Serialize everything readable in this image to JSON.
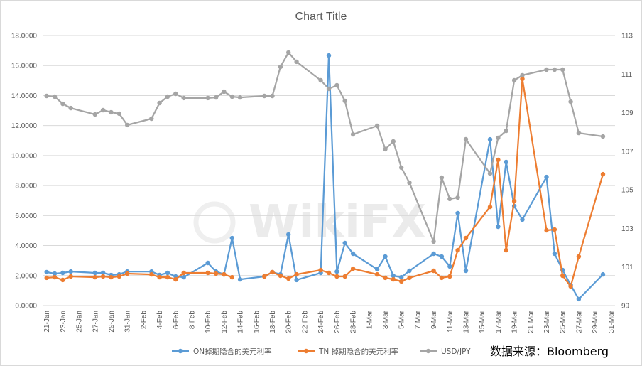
{
  "watermark": "WikiFX",
  "source_note": "数据来源：Bloomberg",
  "chart_data": {
    "type": "line",
    "title": "Chart Title",
    "grid": true,
    "legend_position": "bottom",
    "xlim": [
      "21-Jan",
      "31-Mar"
    ],
    "ylim": [
      0,
      18
    ],
    "y2lim": [
      99,
      113
    ],
    "y_ticks": [
      "0.0000",
      "2.0000",
      "4.0000",
      "6.0000",
      "8.0000",
      "10.0000",
      "12.0000",
      "14.0000",
      "16.0000",
      "18.0000"
    ],
    "y2_ticks": [
      "99",
      "101",
      "103",
      "105",
      "107",
      "109",
      "111",
      "113"
    ],
    "x_ticks": [
      "21-Jan",
      "23-Jan",
      "25-Jan",
      "27-Jan",
      "29-Jan",
      "31-Jan",
      "2-Feb",
      "4-Feb",
      "6-Feb",
      "8-Feb",
      "10-Feb",
      "12-Feb",
      "14-Feb",
      "16-Feb",
      "18-Feb",
      "20-Feb",
      "22-Feb",
      "24-Feb",
      "26-Feb",
      "28-Feb",
      "1-Mar",
      "3-Mar",
      "5-Mar",
      "7-Mar",
      "9-Mar",
      "11-Mar",
      "13-Mar",
      "15-Mar",
      "17-Mar",
      "19-Mar",
      "21-Mar",
      "23-Mar",
      "25-Mar",
      "27-Mar",
      "29-Mar",
      "31-Mar"
    ],
    "x": [
      "21-Jan",
      "22-Jan",
      "23-Jan",
      "24-Jan",
      "27-Jan",
      "28-Jan",
      "29-Jan",
      "30-Jan",
      "31-Jan",
      "3-Feb",
      "4-Feb",
      "5-Feb",
      "6-Feb",
      "7-Feb",
      "10-Feb",
      "11-Feb",
      "12-Feb",
      "13-Feb",
      "14-Feb",
      "17-Feb",
      "18-Feb",
      "19-Feb",
      "20-Feb",
      "21-Feb",
      "24-Feb",
      "25-Feb",
      "26-Feb",
      "27-Feb",
      "28-Feb",
      "2-Mar",
      "3-Mar",
      "4-Mar",
      "5-Mar",
      "6-Mar",
      "9-Mar",
      "10-Mar",
      "11-Mar",
      "12-Mar",
      "13-Mar",
      "16-Mar",
      "17-Mar",
      "18-Mar",
      "19-Mar",
      "20-Mar",
      "23-Mar",
      "24-Mar",
      "25-Mar",
      "26-Mar",
      "27-Mar",
      "30-Mar"
    ],
    "series": [
      {
        "name": "ON掉期隐含的美元利率",
        "axis": "left",
        "color": "#5B9BD5",
        "values": [
          2.23,
          2.13,
          2.18,
          2.27,
          2.18,
          2.18,
          2.04,
          2.08,
          2.27,
          2.27,
          2.04,
          2.18,
          1.94,
          1.89,
          2.84,
          2.27,
          2.08,
          4.5,
          1.75,
          1.94,
          2.23,
          2.08,
          4.74,
          1.71,
          2.18,
          16.67,
          2.27,
          4.17,
          3.46,
          2.42,
          3.27,
          1.99,
          1.89,
          2.32,
          3.46,
          3.27,
          2.61,
          6.16,
          2.32,
          11.08,
          5.26,
          9.57,
          6.63,
          5.73,
          8.57,
          3.46,
          2.37,
          1.37,
          0.43,
          2.08
        ]
      },
      {
        "name": "TN 掉期隐含的美元利率",
        "axis": "left",
        "color": "#ED7D31",
        "values": [
          1.85,
          1.89,
          1.71,
          1.94,
          1.89,
          1.94,
          1.89,
          1.94,
          2.13,
          2.08,
          1.89,
          1.89,
          1.75,
          2.18,
          2.18,
          2.13,
          2.08,
          1.89,
          null,
          1.94,
          2.23,
          1.99,
          1.8,
          2.08,
          2.37,
          2.18,
          1.94,
          1.94,
          2.46,
          2.08,
          1.85,
          1.75,
          1.61,
          1.85,
          2.32,
          1.85,
          1.94,
          3.69,
          4.5,
          6.58,
          9.71,
          3.69,
          6.96,
          15.11,
          5.02,
          5.07,
          1.99,
          1.28,
          3.27,
          8.76
        ]
      },
      {
        "name": "USD/JPY",
        "axis": "right",
        "color": "#A5A5A5",
        "values": [
          109.87,
          109.83,
          109.46,
          109.24,
          108.91,
          109.13,
          109.02,
          108.95,
          108.36,
          108.69,
          109.5,
          109.83,
          109.98,
          109.76,
          109.76,
          109.79,
          110.09,
          109.83,
          109.79,
          109.87,
          109.87,
          111.38,
          112.12,
          111.64,
          110.68,
          110.24,
          110.42,
          109.61,
          107.88,
          108.32,
          107.11,
          107.51,
          106.15,
          105.37,
          102.32,
          105.63,
          104.53,
          104.6,
          107.62,
          105.85,
          107.7,
          108.06,
          110.68,
          110.94,
          111.23,
          111.23,
          111.23,
          109.57,
          107.95,
          107.77
        ]
      }
    ]
  }
}
